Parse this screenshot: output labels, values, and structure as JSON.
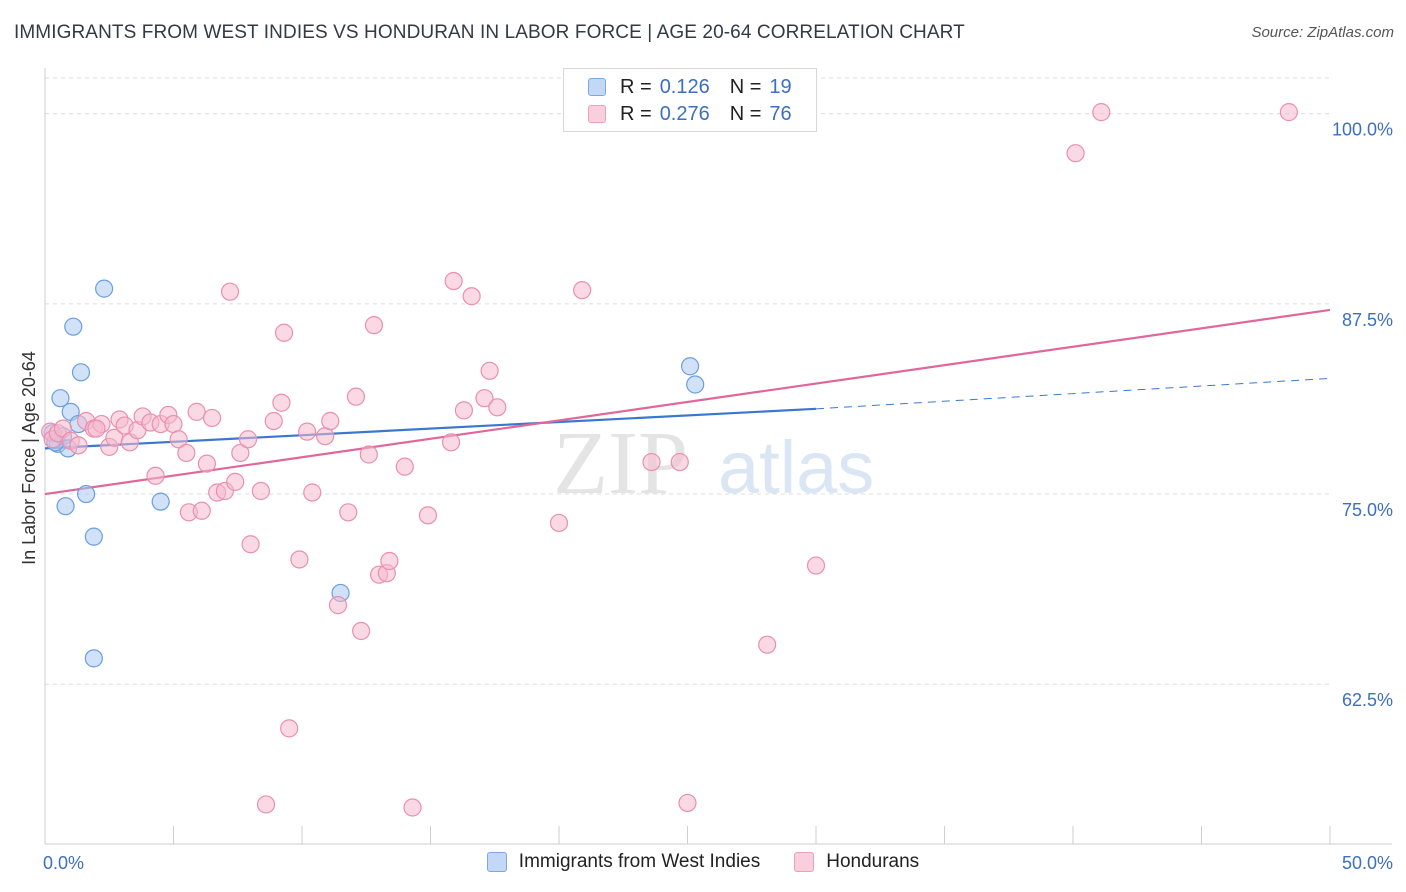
{
  "title": "IMMIGRANTS FROM WEST INDIES VS HONDURAN IN LABOR FORCE | AGE 20-64 CORRELATION CHART",
  "source": "Source: ZipAtlas.com",
  "watermark": {
    "zip": "ZIP",
    "atlas": "atlas"
  },
  "legend": {
    "rows": [
      {
        "r_label": "R =",
        "r_value": "0.126",
        "n_label": "N =",
        "n_value": "19",
        "color": "#a9c8f2"
      },
      {
        "r_label": "R =",
        "r_value": "0.276",
        "n_label": "N =",
        "n_value": "76",
        "color": "#f6b9cd"
      }
    ]
  },
  "bottom_legend": [
    {
      "label": "Immigrants from West Indies",
      "color": "#a9c8f2"
    },
    {
      "label": "Hondurans",
      "color": "#f6b9cd"
    }
  ],
  "chart_data": {
    "type": "scatter",
    "ylabel": "In Labor Force | Age 20-64",
    "xlabel": "",
    "xlim": [
      0,
      50
    ],
    "ylim": [
      52,
      103
    ],
    "x_tick_labels": [
      "0.0%",
      "50.0%"
    ],
    "y_ticks": [
      {
        "value": 100.0,
        "label": "100.0%"
      },
      {
        "value": 87.5,
        "label": "87.5%"
      },
      {
        "value": 75.0,
        "label": "75.0%"
      },
      {
        "value": 62.5,
        "label": "62.5%"
      }
    ],
    "grid": "horizontal-dashed",
    "legend_position": "top-center",
    "series": [
      {
        "name": "Immigrants from West Indies",
        "color": "#6a9fe0",
        "fill": "#a9c8f2",
        "trend": {
          "x0": 0,
          "y0": 78.0,
          "x1": 30,
          "y1": 80.6,
          "dash_x1": 50,
          "dash_y1": 82.6,
          "color": "#3a78d0"
        },
        "points": [
          [
            0.3,
            79.0
          ],
          [
            0.5,
            78.3
          ],
          [
            0.6,
            81.3
          ],
          [
            0.7,
            78.8
          ],
          [
            0.8,
            74.2
          ],
          [
            0.9,
            78.0
          ],
          [
            1.0,
            80.4
          ],
          [
            1.1,
            86.0
          ],
          [
            1.3,
            79.6
          ],
          [
            1.4,
            83.0
          ],
          [
            1.6,
            75.0
          ],
          [
            1.9,
            72.2
          ],
          [
            1.9,
            64.2
          ],
          [
            2.3,
            88.5
          ],
          [
            4.5,
            74.5
          ],
          [
            11.5,
            68.5
          ],
          [
            25.1,
            83.4
          ],
          [
            25.3,
            82.2
          ],
          [
            0.4,
            78.4
          ]
        ]
      },
      {
        "name": "Hondurans",
        "color": "#ea8fae",
        "fill": "#f6b9cd",
        "trend": {
          "x0": 0,
          "y0": 75.0,
          "x1": 50,
          "y1": 87.1,
          "color": "#e0679a"
        },
        "points": [
          [
            0.2,
            79.1
          ],
          [
            0.3,
            78.6
          ],
          [
            0.5,
            79.0
          ],
          [
            0.7,
            79.3
          ],
          [
            1.0,
            78.5
          ],
          [
            1.3,
            78.2
          ],
          [
            1.6,
            79.8
          ],
          [
            1.9,
            79.3
          ],
          [
            2.2,
            79.6
          ],
          [
            2.5,
            78.1
          ],
          [
            2.7,
            78.7
          ],
          [
            2.9,
            79.9
          ],
          [
            3.1,
            79.5
          ],
          [
            3.3,
            78.4
          ],
          [
            3.6,
            79.2
          ],
          [
            3.8,
            80.1
          ],
          [
            4.1,
            79.7
          ],
          [
            4.3,
            76.2
          ],
          [
            4.5,
            79.6
          ],
          [
            4.8,
            80.2
          ],
          [
            5.0,
            79.6
          ],
          [
            5.2,
            78.6
          ],
          [
            5.5,
            77.7
          ],
          [
            5.6,
            73.8
          ],
          [
            5.9,
            80.4
          ],
          [
            6.1,
            73.9
          ],
          [
            6.3,
            77.0
          ],
          [
            6.5,
            80.0
          ],
          [
            6.7,
            75.1
          ],
          [
            7.0,
            75.2
          ],
          [
            7.2,
            88.3
          ],
          [
            7.4,
            75.8
          ],
          [
            7.6,
            77.7
          ],
          [
            7.9,
            78.6
          ],
          [
            8.0,
            71.7
          ],
          [
            8.4,
            75.2
          ],
          [
            8.6,
            54.6
          ],
          [
            8.9,
            79.8
          ],
          [
            9.2,
            81.0
          ],
          [
            9.3,
            85.6
          ],
          [
            9.5,
            59.6
          ],
          [
            9.9,
            70.7
          ],
          [
            10.2,
            79.1
          ],
          [
            10.4,
            75.1
          ],
          [
            10.9,
            78.8
          ],
          [
            11.1,
            79.8
          ],
          [
            11.4,
            67.7
          ],
          [
            11.8,
            73.8
          ],
          [
            12.1,
            81.4
          ],
          [
            12.3,
            66.0
          ],
          [
            12.6,
            77.6
          ],
          [
            12.8,
            86.1
          ],
          [
            13.0,
            69.7
          ],
          [
            13.3,
            69.8
          ],
          [
            13.4,
            70.6
          ],
          [
            14.0,
            76.8
          ],
          [
            14.3,
            54.4
          ],
          [
            14.9,
            73.6
          ],
          [
            15.8,
            78.4
          ],
          [
            15.9,
            89.0
          ],
          [
            16.3,
            80.5
          ],
          [
            16.6,
            88.0
          ],
          [
            17.1,
            81.3
          ],
          [
            17.3,
            83.1
          ],
          [
            17.6,
            80.7
          ],
          [
            20.0,
            73.1
          ],
          [
            20.9,
            88.4
          ],
          [
            23.6,
            77.1
          ],
          [
            24.7,
            77.1
          ],
          [
            25.0,
            54.7
          ],
          [
            28.1,
            65.1
          ],
          [
            30.0,
            70.3
          ],
          [
            40.1,
            97.4
          ],
          [
            41.1,
            100.1
          ],
          [
            48.4,
            100.1
          ],
          [
            2.0,
            79.3
          ]
        ]
      }
    ]
  }
}
